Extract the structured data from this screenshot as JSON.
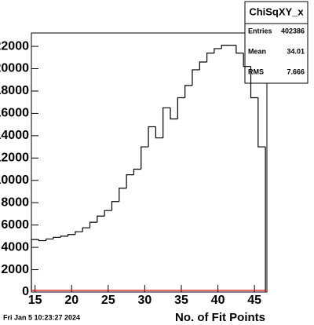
{
  "chart_data": {
    "type": "histogram",
    "xlabel": "No. of Fit Points",
    "footer": "Fri Jan  5 10:23:27 2024",
    "stats": {
      "title": "ChiSqXY_x",
      "rows": [
        [
          "Entries",
          "402386"
        ],
        [
          "Mean",
          "34.01"
        ],
        [
          "RMS",
          "7.666"
        ]
      ]
    },
    "bins": [
      14.5,
      15.5,
      16.5,
      17.5,
      18.5,
      19.5,
      20.5,
      21.5,
      22.5,
      23.5,
      24.5,
      25.5,
      26.5,
      27.5,
      28.5,
      29.5,
      30.5,
      31.5,
      32.5,
      33.5,
      34.5,
      35.5,
      36.5,
      37.5,
      38.5,
      39.5,
      40.5,
      41.5,
      42.5,
      43.5,
      44.5,
      45.5,
      46.5
    ],
    "series": [
      {
        "color": "#000000",
        "values": [
          4700,
          4600,
          4750,
          4900,
          5000,
          5150,
          5400,
          5750,
          6250,
          6800,
          7300,
          8100,
          9300,
          10500,
          11000,
          13000,
          14800,
          13800,
          16500,
          15500,
          17400,
          18500,
          19900,
          20600,
          21400,
          21800,
          22100,
          22100,
          21400,
          20200,
          17400,
          13000,
          0
        ]
      },
      {
        "color": "#e00000",
        "values": [
          150,
          150,
          150,
          150,
          150,
          150,
          150,
          150,
          150,
          150,
          150,
          150,
          150,
          150,
          150,
          150,
          150,
          150,
          150,
          150,
          150,
          150,
          150,
          150,
          150,
          150,
          150,
          150,
          150,
          150,
          150,
          150,
          0
        ]
      }
    ],
    "xlim": [
      14.5,
      46.7
    ],
    "ylim": [
      0,
      23200
    ],
    "xticks": [
      15,
      20,
      25,
      30,
      35,
      40,
      45
    ],
    "yticks": [
      0,
      2000,
      4000,
      6000,
      8000,
      10000,
      12000,
      14000,
      16000,
      18000,
      20000,
      22000
    ]
  }
}
